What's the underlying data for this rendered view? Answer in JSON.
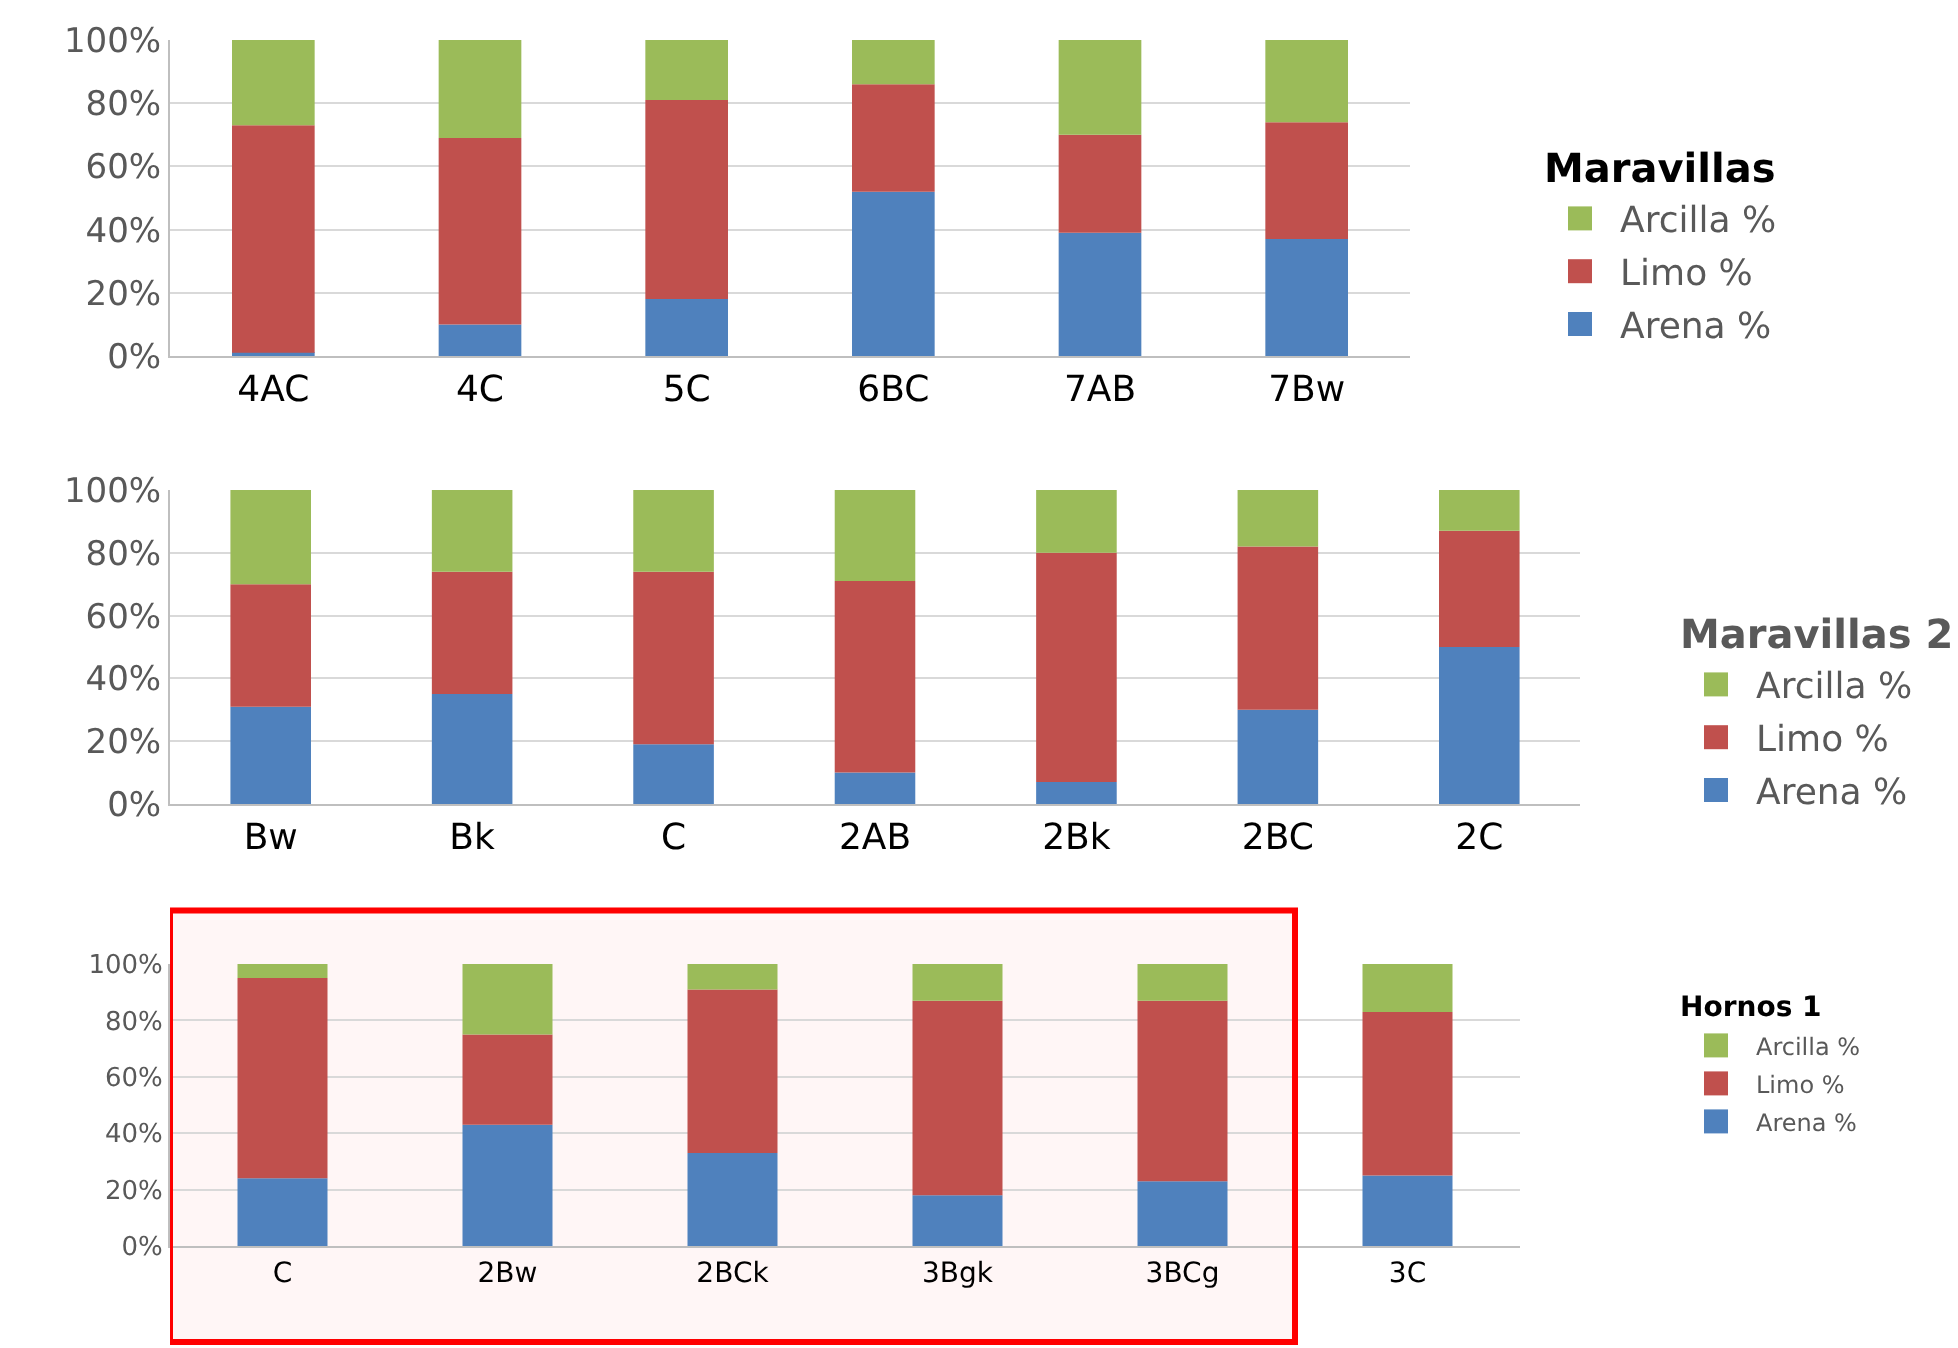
{
  "chart_data": [
    {
      "type": "bar",
      "stacked": true,
      "categories": [
        "4AC",
        "4C",
        "5C",
        "6BC",
        "7AB",
        "7Bw"
      ],
      "legend_title": "Maravillas",
      "legend": "right",
      "grid": "y",
      "ylim": [
        0,
        100
      ],
      "yticks": [
        {
          "value": 0,
          "label": "0%"
        },
        {
          "value": 20,
          "label": "20%"
        },
        {
          "value": 40,
          "label": "40%"
        },
        {
          "value": 60,
          "label": "60%"
        },
        {
          "value": 80,
          "label": "80%"
        },
        {
          "value": 100,
          "label": "100%"
        }
      ],
      "series": [
        {
          "name": "Arena %",
          "color": "#4f81bd",
          "values": [
            1,
            10,
            18,
            52,
            39,
            37
          ]
        },
        {
          "name": "Limo %",
          "color": "#c0504d",
          "values": [
            72,
            59,
            63,
            34,
            31,
            37
          ]
        },
        {
          "name": "Arcilla %",
          "color": "#9bbb59",
          "values": [
            27,
            31,
            19,
            14,
            30,
            26
          ]
        }
      ]
    },
    {
      "type": "bar",
      "stacked": true,
      "categories": [
        "Bw",
        "Bk",
        "C",
        "2AB",
        "2Bk",
        "2BC",
        "2C"
      ],
      "legend_title": "Maravillas 2",
      "legend": "right",
      "grid": "y",
      "ylim": [
        0,
        100
      ],
      "yticks": [
        {
          "value": 0,
          "label": "0%"
        },
        {
          "value": 20,
          "label": "20%"
        },
        {
          "value": 40,
          "label": "40%"
        },
        {
          "value": 60,
          "label": "60%"
        },
        {
          "value": 80,
          "label": "80%"
        },
        {
          "value": 100,
          "label": "100%"
        }
      ],
      "series": [
        {
          "name": "Arena %",
          "color": "#4f81bd",
          "values": [
            31,
            35,
            19,
            10,
            7,
            30,
            50
          ]
        },
        {
          "name": "Limo %",
          "color": "#c0504d",
          "values": [
            39,
            39,
            55,
            61,
            73,
            52,
            37
          ]
        },
        {
          "name": "Arcilla %",
          "color": "#9bbb59",
          "values": [
            30,
            26,
            26,
            29,
            20,
            18,
            13
          ]
        }
      ]
    },
    {
      "type": "bar",
      "stacked": true,
      "categories": [
        "C",
        "2Bw",
        "2BCk",
        "3Bgk",
        "3BCg",
        "3C"
      ],
      "legend_title": "Hornos 1",
      "legend": "right",
      "grid": "y",
      "ylim": [
        0,
        100
      ],
      "yticks": [
        {
          "value": 0,
          "label": "0%"
        },
        {
          "value": 20,
          "label": "20%"
        },
        {
          "value": 40,
          "label": "40%"
        },
        {
          "value": 60,
          "label": "60%"
        },
        {
          "value": 80,
          "label": "80%"
        },
        {
          "value": 100,
          "label": "100%"
        }
      ],
      "bands": [
        {
          "axis": "x",
          "from": "C",
          "to": "3BCg",
          "color": "#ff0000"
        }
      ],
      "series": [
        {
          "name": "Arena %",
          "color": "#4f81bd",
          "values": [
            24,
            43,
            33,
            18,
            23,
            25
          ]
        },
        {
          "name": "Limo %",
          "color": "#c0504d",
          "values": [
            71,
            32,
            58,
            69,
            64,
            58
          ]
        },
        {
          "name": "Arcilla %",
          "color": "#9bbb59",
          "values": [
            5,
            25,
            9,
            13,
            13,
            17
          ]
        }
      ]
    }
  ]
}
